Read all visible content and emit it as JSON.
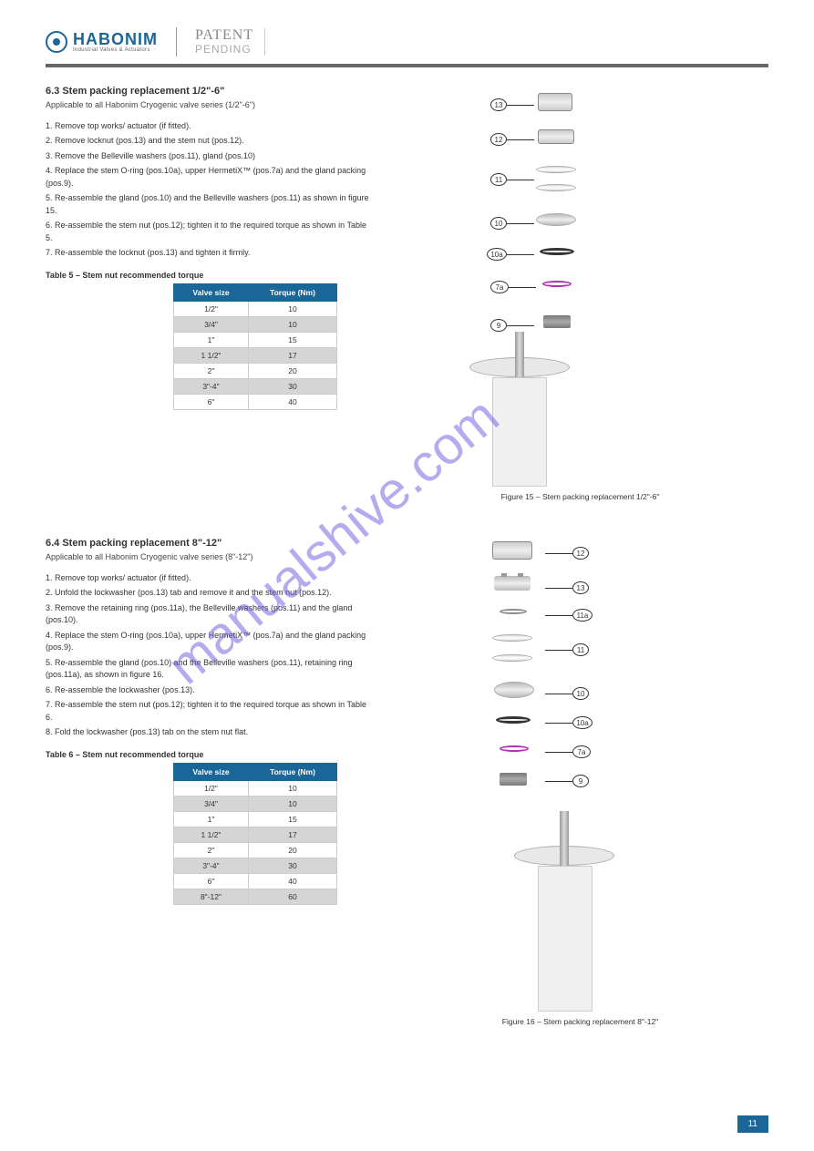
{
  "header": {
    "logo_main": "HABONIM",
    "logo_sub": "Industrial Valves & Actuators",
    "patent": "PATENT",
    "patent_sub": "PENDING"
  },
  "section1": {
    "title": "6.3 Stem packing replacement 1/2\"-6\"",
    "sub": "Applicable to all Habonim Cryogenic valve series (1/2\"-6\")",
    "steps": [
      "1. Remove top works/ actuator (if fitted).",
      "2. Remove locknut (pos.13) and the stem nut (pos.12).",
      "3. Remove the Belleville washers (pos.11), gland (pos.10)",
      "4. Replace the stem O-ring (pos.10a), upper HermetiX™ (pos.7a) and the gland packing (pos.9).",
      "5. Re-assemble the gland (pos.10) and the Belleville washers (pos.11) as shown in figure 15.",
      "6. Re-assemble the stem nut (pos.12); tighten it to the required torque as shown in Table 5.",
      "7. Re-assemble the locknut (pos.13) and tighten it firmly."
    ],
    "table_title": "Table 5 – Stem nut recommended torque",
    "table_headers": [
      "Valve size",
      "Torque (Nm)"
    ],
    "table_rows": [
      [
        "1/2\"",
        "10"
      ],
      [
        "3/4\"",
        "10"
      ],
      [
        "1\"",
        "15"
      ],
      [
        "1 1/2\"",
        "17"
      ],
      [
        "2\"",
        "20"
      ],
      [
        "3\"-4\"",
        "30"
      ],
      [
        "6\"",
        "40"
      ]
    ],
    "fig_caption": "Figure 15 – Stem packing replacement 1/2\"-6\"",
    "callouts": [
      {
        "num": "13",
        "label": "locknut"
      },
      {
        "num": "12",
        "label": "stem-nut"
      },
      {
        "num": "11",
        "label": "belleville-washers"
      },
      {
        "num": "10",
        "label": "gland"
      },
      {
        "num": "10a",
        "label": "stem-oring"
      },
      {
        "num": "7a",
        "label": "hermetix"
      },
      {
        "num": "9",
        "label": "gland-packing"
      }
    ]
  },
  "section2": {
    "title": "6.4 Stem packing replacement 8\"-12\"",
    "sub": "Applicable to all Habonim Cryogenic valve series (8\"-12\")",
    "steps": [
      "1. Remove top works/ actuator (if fitted).",
      "2. Unfold the lockwasher (pos.13) tab and remove it and the stem nut (pos.12).",
      "3. Remove the retaining ring (pos.11a), the Belleville washers (pos.11) and the gland (pos.10).",
      "4. Replace the stem O-ring (pos.10a), upper HermetiX™ (pos.7a) and the gland packing (pos.9).",
      "5. Re-assemble the gland (pos.10) and the Belleville washers (pos.11), retaining ring (pos.11a), as shown in figure 16.",
      "6. Re-assemble the lockwasher (pos.13).",
      "7. Re-assemble the stem nut (pos.12); tighten it to the required torque as shown in Table 6.",
      "8. Fold the lockwasher (pos.13) tab on the stem nut flat."
    ],
    "table_title": "Table 6 – Stem nut recommended torque",
    "table_headers": [
      "Valve size",
      "Torque (Nm)"
    ],
    "table_rows": [
      [
        "1/2\"",
        "10"
      ],
      [
        "3/4\"",
        "10"
      ],
      [
        "1\"",
        "15"
      ],
      [
        "1 1/2\"",
        "17"
      ],
      [
        "2\"",
        "20"
      ],
      [
        "3\"-4\"",
        "30"
      ],
      [
        "6\"",
        "40"
      ],
      [
        "8\"-12\"",
        "60"
      ]
    ],
    "fig_caption": "Figure 16 – Stem packing replacement 8\"-12\"",
    "callouts": [
      {
        "num": "12",
        "label": "stem-nut"
      },
      {
        "num": "13",
        "label": "lockwasher"
      },
      {
        "num": "11a",
        "label": "retaining-ring"
      },
      {
        "num": "11",
        "label": "belleville-washers"
      },
      {
        "num": "10",
        "label": "gland"
      },
      {
        "num": "10a",
        "label": "stem-oring"
      },
      {
        "num": "7a",
        "label": "hermetix"
      },
      {
        "num": "9",
        "label": "gland-packing"
      }
    ]
  },
  "colors": {
    "brand": "#1a6699",
    "hermetix": "#b030b0",
    "watermark": "#6b5ce0",
    "hr": "#666666"
  },
  "watermark": "manualshive.com",
  "page_number": "11"
}
